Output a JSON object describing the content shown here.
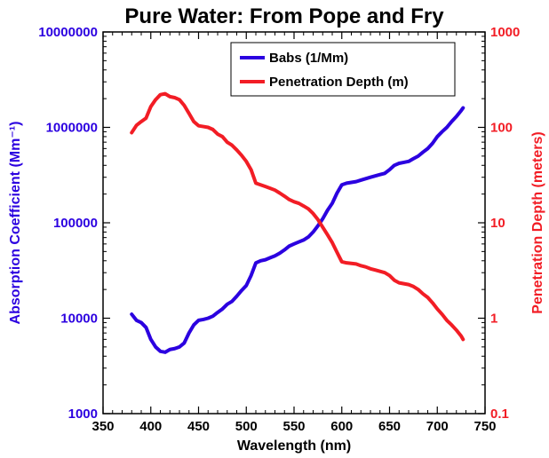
{
  "chart_data": {
    "type": "line",
    "title": "Pure Water: From Pope and Fry",
    "xlabel": "Wavelength (nm)",
    "ylabel_left": "Absorption Coefficient (Mm⁻¹)",
    "ylabel_right": "Penetration Depth (meters)",
    "xlim": [
      350,
      750
    ],
    "ylim_left": [
      1000,
      10000000
    ],
    "ylim_right": [
      0.1,
      1000
    ],
    "yscale": "log",
    "x_ticks": [
      "350",
      "400",
      "450",
      "500",
      "550",
      "600",
      "650",
      "700",
      "750"
    ],
    "y_left_ticks": [
      "1000",
      "10000",
      "100000",
      "1000000",
      "10000000"
    ],
    "y_right_ticks": [
      "0.1",
      "1",
      "10",
      "100",
      "1000"
    ],
    "legend_position": "top-right",
    "grid": false,
    "series": [
      {
        "name": "Babs (1/Mm)",
        "color": "#2b00e0",
        "axis": "left",
        "x": [
          380,
          385,
          390,
          395,
          400,
          405,
          410,
          415,
          420,
          425,
          430,
          435,
          440,
          445,
          450,
          455,
          460,
          465,
          470,
          475,
          480,
          485,
          490,
          495,
          500,
          505,
          510,
          515,
          520,
          525,
          530,
          535,
          540,
          545,
          550,
          555,
          560,
          565,
          570,
          575,
          580,
          585,
          590,
          595,
          600,
          605,
          610,
          615,
          620,
          625,
          630,
          635,
          640,
          645,
          650,
          655,
          660,
          665,
          670,
          675,
          680,
          685,
          690,
          695,
          700,
          705,
          710,
          715,
          720,
          725,
          727
        ],
        "values": [
          11000,
          9500,
          9000,
          8000,
          6000,
          5000,
          4500,
          4400,
          4700,
          4800,
          5000,
          5500,
          7000,
          8500,
          9500,
          9700,
          10000,
          10500,
          11500,
          12500,
          14000,
          15000,
          17000,
          19500,
          22000,
          28000,
          38000,
          40000,
          41000,
          43000,
          45000,
          48000,
          52000,
          57000,
          60000,
          63000,
          66000,
          71000,
          80000,
          93000,
          110000,
          135000,
          160000,
          205000,
          250000,
          260000,
          265000,
          270000,
          280000,
          290000,
          300000,
          310000,
          320000,
          330000,
          360000,
          400000,
          420000,
          430000,
          440000,
          470000,
          500000,
          550000,
          600000,
          680000,
          800000,
          900000,
          1000000,
          1150000,
          1300000,
          1500000,
          1600000
        ]
      },
      {
        "name": "Penetration Depth (m)",
        "color": "#f21d25",
        "axis": "right",
        "x": [
          380,
          385,
          390,
          395,
          400,
          405,
          410,
          415,
          420,
          425,
          430,
          435,
          440,
          445,
          450,
          455,
          460,
          465,
          470,
          475,
          480,
          485,
          490,
          495,
          500,
          505,
          510,
          515,
          520,
          525,
          530,
          535,
          540,
          545,
          550,
          555,
          560,
          565,
          570,
          575,
          580,
          585,
          590,
          595,
          600,
          605,
          610,
          615,
          620,
          625,
          630,
          635,
          640,
          645,
          650,
          655,
          660,
          665,
          670,
          675,
          680,
          685,
          690,
          695,
          700,
          705,
          710,
          715,
          720,
          725,
          727
        ],
        "values": [
          88,
          105,
          115,
          125,
          165,
          195,
          220,
          225,
          210,
          205,
          195,
          170,
          140,
          115,
          104,
          102,
          100,
          95,
          85,
          80,
          70,
          65,
          58,
          51,
          44,
          36,
          26,
          25,
          24,
          23,
          22,
          20.5,
          19,
          17.5,
          16.6,
          16,
          15,
          14,
          12.5,
          10.8,
          9,
          7.5,
          6.2,
          4.9,
          3.9,
          3.8,
          3.75,
          3.7,
          3.55,
          3.45,
          3.3,
          3.2,
          3.1,
          3.0,
          2.8,
          2.5,
          2.35,
          2.3,
          2.25,
          2.15,
          2.0,
          1.8,
          1.65,
          1.45,
          1.25,
          1.1,
          0.95,
          0.85,
          0.75,
          0.65,
          0.6
        ]
      }
    ]
  }
}
